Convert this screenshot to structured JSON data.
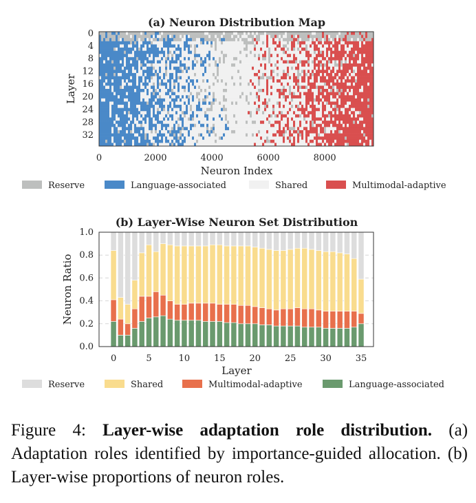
{
  "chart_data": [
    {
      "type": "heatmap",
      "title": "(a) Neuron Distribution Map",
      "xlabel": "Neuron Index",
      "ylabel": "Layer",
      "xlim": [
        0,
        9728
      ],
      "xticks": [
        "0",
        "2000",
        "4000",
        "6000",
        "8000"
      ],
      "ylim": [
        0,
        35
      ],
      "yticks": [
        "0",
        "4",
        "8",
        "12",
        "16",
        "20",
        "24",
        "28",
        "32"
      ],
      "description_of_pattern": "Language-associated neurons concentrated at low indices, Shared in the middle, Multimodal-adaptive at high indices; layers 0-2 mostly Reserve",
      "legend": [
        "Reserve",
        "Language-associated",
        "Shared",
        "Multimodal-adaptive"
      ],
      "colors": {
        "Reserve": "#bdbfbe",
        "Language-associated": "#4a89c8",
        "Shared": "#f1f1f1",
        "Multimodal-adaptive": "#d94f4f"
      }
    },
    {
      "type": "bar",
      "stacked": true,
      "title": "(b) Layer-Wise Neuron Set Distribution",
      "xlabel": "Layer",
      "ylabel": "Neuron Ratio",
      "ylim": [
        0,
        1.0
      ],
      "yticks": [
        "0.0",
        "0.2",
        "0.4",
        "0.6",
        "0.8",
        "1.0"
      ],
      "xticks": [
        "0",
        "5",
        "10",
        "15",
        "20",
        "25",
        "30",
        "35"
      ],
      "categories": [
        0,
        1,
        2,
        3,
        4,
        5,
        6,
        7,
        8,
        9,
        10,
        11,
        12,
        13,
        14,
        15,
        16,
        17,
        18,
        19,
        20,
        21,
        22,
        23,
        24,
        25,
        26,
        27,
        28,
        29,
        30,
        31,
        32,
        33,
        34,
        35
      ],
      "series": [
        {
          "name": "Language-associated",
          "color": "#6a9a6e",
          "values": [
            0.22,
            0.1,
            0.1,
            0.16,
            0.22,
            0.25,
            0.26,
            0.27,
            0.24,
            0.23,
            0.23,
            0.23,
            0.23,
            0.22,
            0.22,
            0.22,
            0.21,
            0.21,
            0.2,
            0.2,
            0.2,
            0.19,
            0.19,
            0.18,
            0.18,
            0.18,
            0.18,
            0.17,
            0.17,
            0.17,
            0.16,
            0.16,
            0.16,
            0.16,
            0.17,
            0.2
          ]
        },
        {
          "name": "Multimodal-adaptive",
          "color": "#e8704c",
          "values": [
            0.19,
            0.14,
            0.1,
            0.17,
            0.22,
            0.19,
            0.22,
            0.18,
            0.16,
            0.14,
            0.14,
            0.15,
            0.15,
            0.16,
            0.16,
            0.15,
            0.16,
            0.16,
            0.16,
            0.16,
            0.15,
            0.15,
            0.14,
            0.14,
            0.15,
            0.15,
            0.16,
            0.16,
            0.16,
            0.15,
            0.15,
            0.15,
            0.15,
            0.15,
            0.14,
            0.09
          ]
        },
        {
          "name": "Shared",
          "color": "#f9dc8e",
          "values": [
            0.43,
            0.19,
            0.17,
            0.25,
            0.38,
            0.45,
            0.35,
            0.45,
            0.49,
            0.51,
            0.51,
            0.5,
            0.5,
            0.5,
            0.51,
            0.52,
            0.51,
            0.51,
            0.52,
            0.52,
            0.52,
            0.52,
            0.52,
            0.52,
            0.51,
            0.52,
            0.52,
            0.53,
            0.52,
            0.52,
            0.52,
            0.52,
            0.51,
            0.5,
            0.46,
            0.3
          ]
        },
        {
          "name": "Reserve",
          "color": "#dddddd",
          "values": [
            0.16,
            0.57,
            0.63,
            0.42,
            0.18,
            0.11,
            0.17,
            0.1,
            0.11,
            0.12,
            0.12,
            0.12,
            0.12,
            0.12,
            0.11,
            0.11,
            0.12,
            0.12,
            0.12,
            0.12,
            0.13,
            0.14,
            0.15,
            0.16,
            0.16,
            0.15,
            0.14,
            0.14,
            0.15,
            0.16,
            0.17,
            0.17,
            0.18,
            0.19,
            0.23,
            0.41
          ]
        }
      ],
      "legend": [
        "Reserve",
        "Shared",
        "Multimodal-adaptive",
        "Language-associated"
      ]
    }
  ],
  "caption": {
    "label": "Figure 4:",
    "bold": "Layer-wise adaptation role distribution.",
    "text": "(a) Adaptation roles identified by importance-guided allocation. (b) Layer-wise proportions of neuron roles."
  }
}
